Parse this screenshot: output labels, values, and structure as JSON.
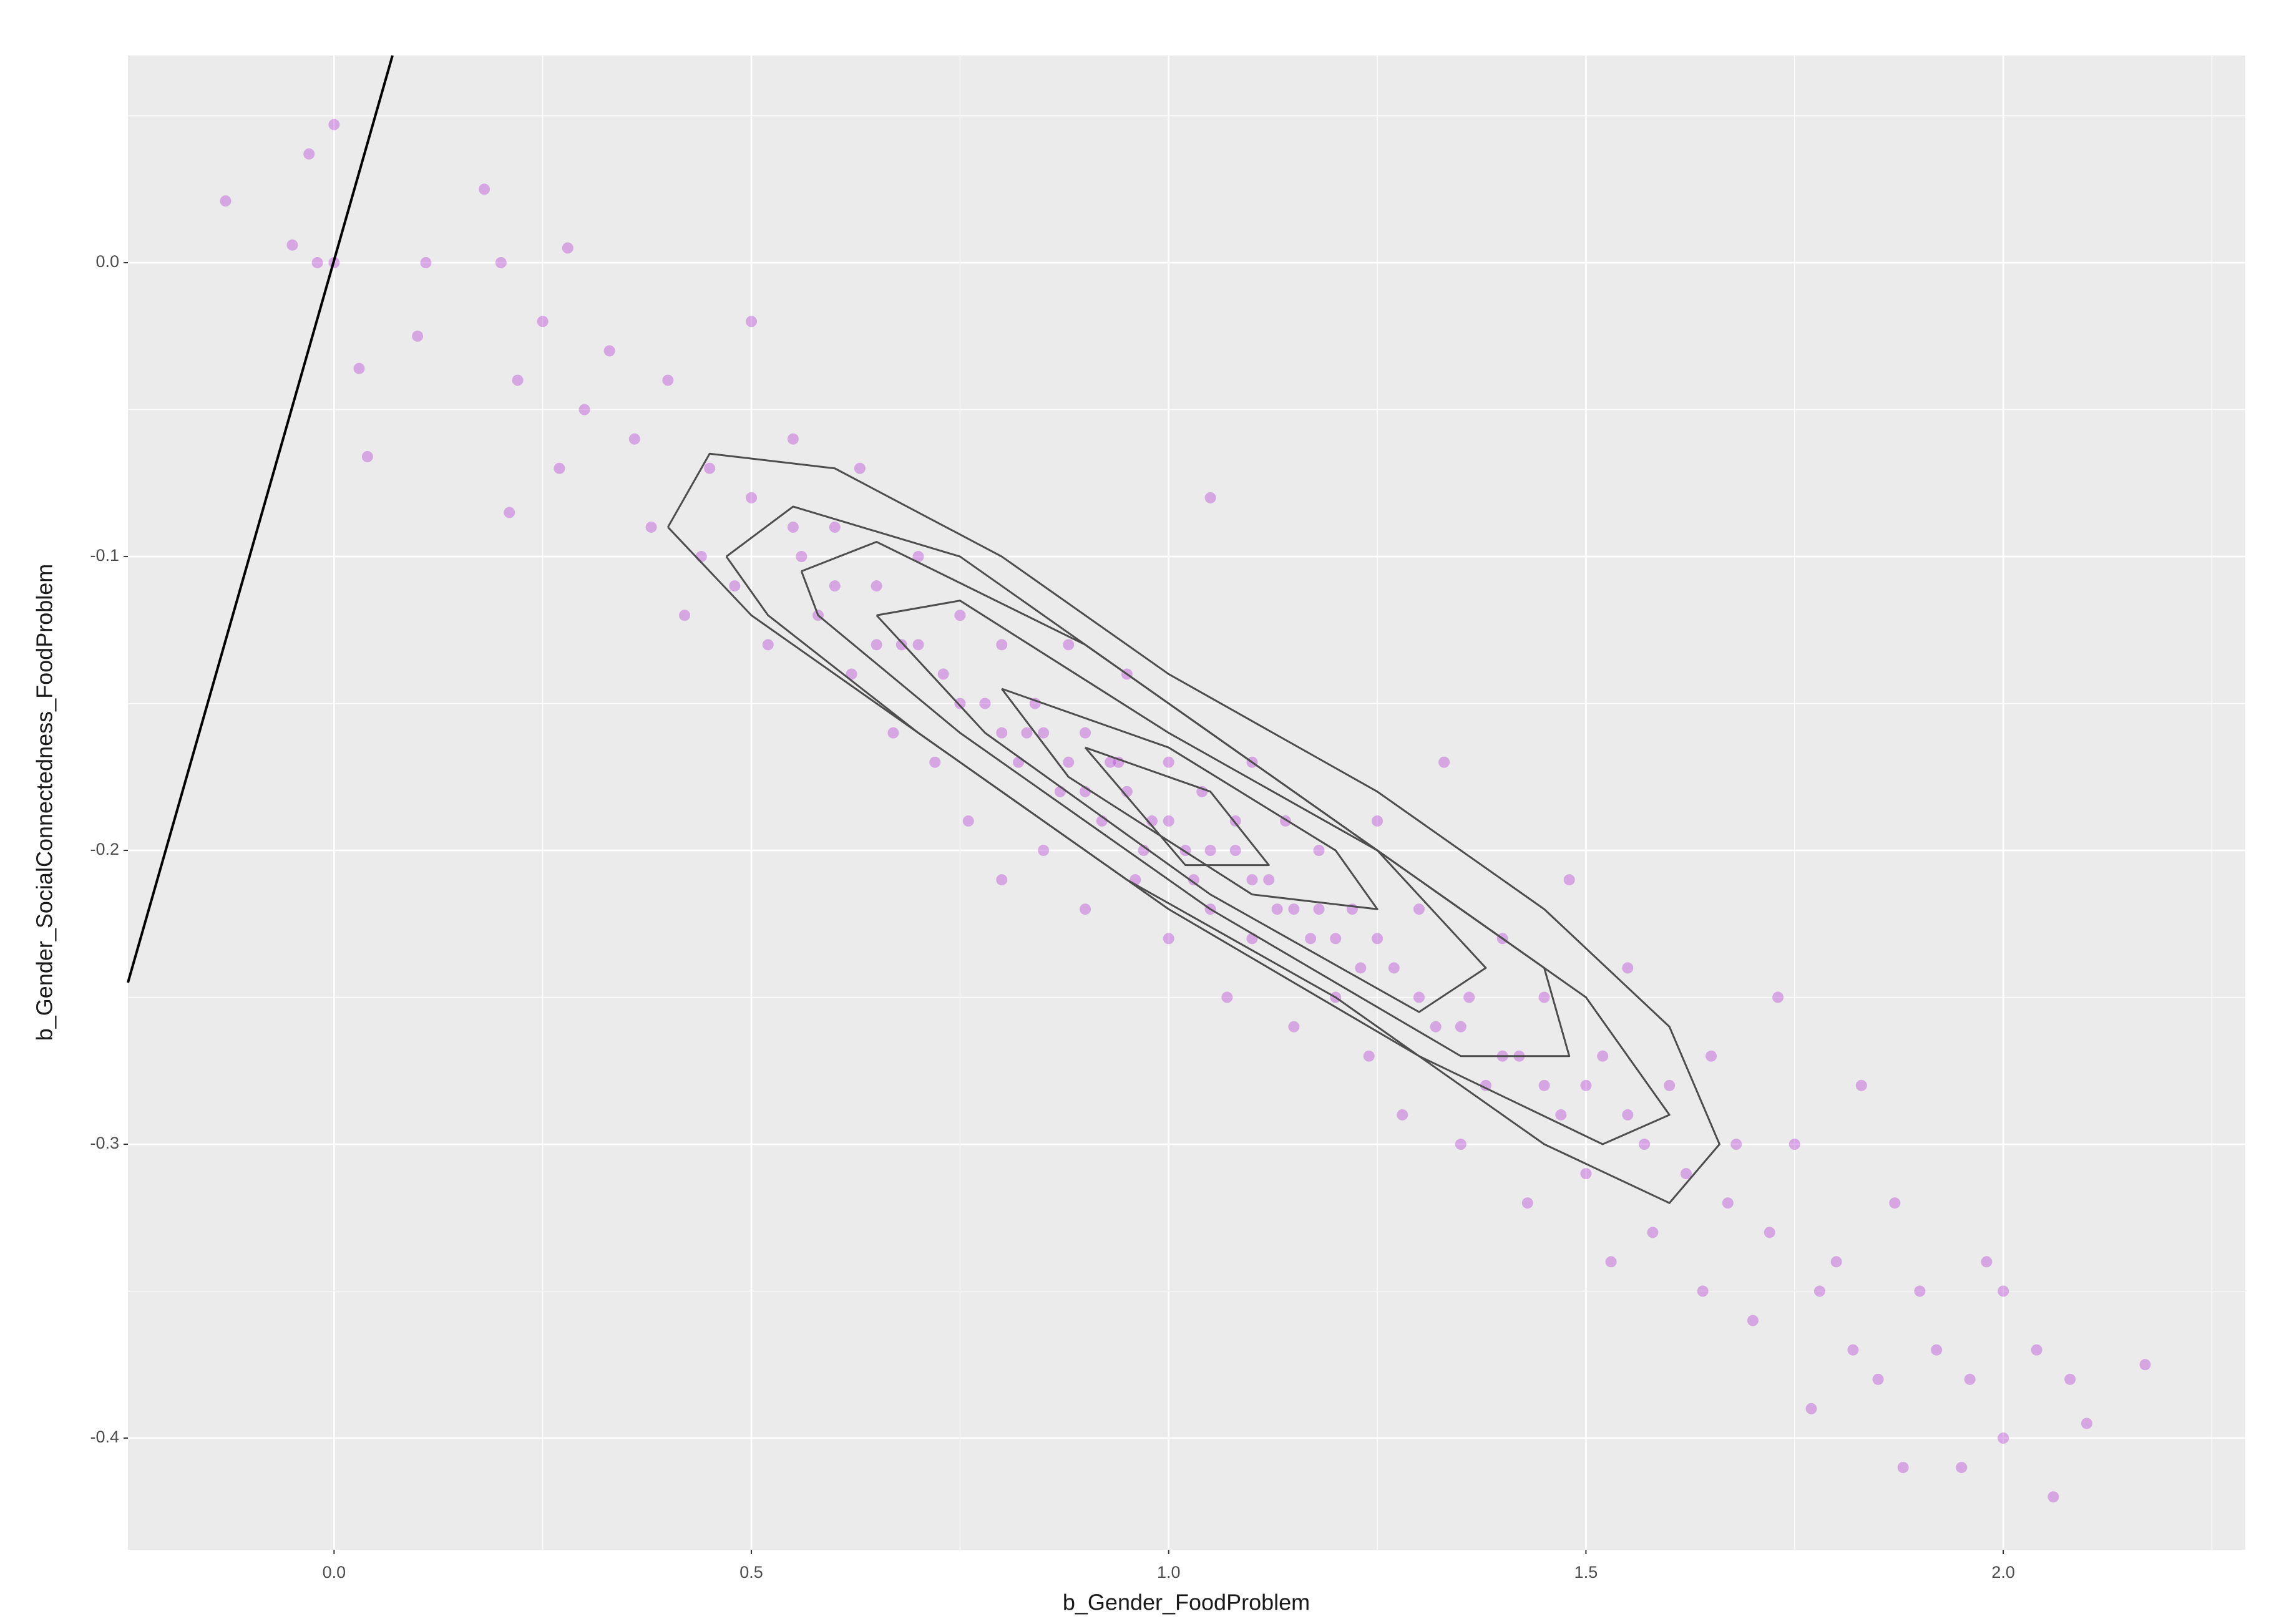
{
  "chart_data": {
    "type": "scatter",
    "x_label": "b_Gender_FoodProblem",
    "y_label": "b_Gender_SocialConnectedness_FoodProblem",
    "xlim": [
      -0.247,
      2.29
    ],
    "ylim": [
      -0.438,
      0.0705
    ],
    "xticks": [
      {
        "value": 0,
        "label": "0.0"
      },
      0.5,
      {
        "value": 1,
        "label": "1.0"
      },
      1.5,
      {
        "value": 2,
        "label": "2.0"
      }
    ],
    "yticks": [
      {
        "value": -0.4,
        "label": "-0.4"
      },
      {
        "value": -0.3,
        "label": "-0.3"
      },
      {
        "value": -0.2,
        "label": "-0.2"
      },
      {
        "value": -0.1,
        "label": "-0.1"
      },
      {
        "value": 0,
        "label": "0.0"
      }
    ],
    "grid": true,
    "color": "#b026d0",
    "x": [
      -0.13,
      -0.05,
      -0.03,
      0.0,
      -0.02,
      0.0,
      0.04,
      0.03,
      0.1,
      0.11,
      0.18,
      0.2,
      0.22,
      0.25,
      0.28,
      0.21,
      0.27,
      0.3,
      0.33,
      0.36,
      0.38,
      0.4,
      0.42,
      0.45,
      0.44,
      0.48,
      0.5,
      0.5,
      0.52,
      0.55,
      0.56,
      0.58,
      0.6,
      0.62,
      0.63,
      0.65,
      0.67,
      0.68,
      0.7,
      0.72,
      0.73,
      0.75,
      0.76,
      0.78,
      0.8,
      0.8,
      0.82,
      0.84,
      0.85,
      0.87,
      0.88,
      0.9,
      0.9,
      0.92,
      0.94,
      0.95,
      0.96,
      0.98,
      1.0,
      1.0,
      1.02,
      1.04,
      1.05,
      1.05,
      1.07,
      1.08,
      1.1,
      1.1,
      1.12,
      1.14,
      1.15,
      1.17,
      1.18,
      1.2,
      1.22,
      1.24,
      1.25,
      1.27,
      1.28,
      1.3,
      1.32,
      1.33,
      1.35,
      1.36,
      1.38,
      1.4,
      1.42,
      1.43,
      1.45,
      1.47,
      1.48,
      1.5,
      1.52,
      1.53,
      1.55,
      1.57,
      1.58,
      1.6,
      1.62,
      1.64,
      1.65,
      1.67,
      1.68,
      1.7,
      1.72,
      1.73,
      1.75,
      1.77,
      1.78,
      1.8,
      1.82,
      1.83,
      1.85,
      1.87,
      1.88,
      1.9,
      1.92,
      1.95,
      1.96,
      1.98,
      2.0,
      2.0,
      2.04,
      2.06,
      2.08,
      2.1,
      2.17,
      0.55,
      0.6,
      0.65,
      0.7,
      0.75,
      0.8,
      0.85,
      0.9,
      0.95,
      1.0,
      1.05,
      1.1,
      1.15,
      1.2,
      1.25,
      1.3,
      1.35,
      1.4,
      1.45,
      1.5,
      1.55,
      0.97,
      1.03,
      1.08,
      0.93,
      1.13,
      1.18,
      0.88,
      0.83,
      1.23
    ],
    "y": [
      0.021,
      0.006,
      0.037,
      0.047,
      0.0,
      0.0,
      -0.066,
      -0.036,
      -0.025,
      0.0,
      0.025,
      0.0,
      -0.04,
      -0.02,
      0.005,
      -0.085,
      -0.07,
      -0.05,
      -0.03,
      -0.06,
      -0.09,
      -0.04,
      -0.12,
      -0.07,
      -0.1,
      -0.11,
      -0.02,
      -0.08,
      -0.13,
      -0.06,
      -0.1,
      -0.12,
      -0.09,
      -0.14,
      -0.07,
      -0.11,
      -0.16,
      -0.13,
      -0.1,
      -0.17,
      -0.14,
      -0.12,
      -0.19,
      -0.15,
      -0.13,
      -0.21,
      -0.17,
      -0.15,
      -0.2,
      -0.18,
      -0.13,
      -0.16,
      -0.22,
      -0.19,
      -0.17,
      -0.14,
      -0.21,
      -0.19,
      -0.17,
      -0.23,
      -0.2,
      -0.18,
      -0.08,
      -0.22,
      -0.25,
      -0.2,
      -0.17,
      -0.23,
      -0.21,
      -0.19,
      -0.26,
      -0.23,
      -0.2,
      -0.25,
      -0.22,
      -0.27,
      -0.19,
      -0.24,
      -0.29,
      -0.22,
      -0.26,
      -0.17,
      -0.3,
      -0.25,
      -0.28,
      -0.23,
      -0.27,
      -0.32,
      -0.25,
      -0.29,
      -0.21,
      -0.31,
      -0.27,
      -0.34,
      -0.24,
      -0.3,
      -0.33,
      -0.28,
      -0.31,
      -0.35,
      -0.27,
      -0.32,
      -0.3,
      -0.36,
      -0.33,
      -0.25,
      -0.3,
      -0.39,
      -0.35,
      -0.34,
      -0.37,
      -0.28,
      -0.38,
      -0.32,
      -0.41,
      -0.35,
      -0.37,
      -0.41,
      -0.38,
      -0.34,
      -0.4,
      -0.35,
      -0.37,
      -0.42,
      -0.38,
      -0.395,
      -0.375,
      -0.09,
      -0.11,
      -0.13,
      -0.13,
      -0.15,
      -0.16,
      -0.16,
      -0.18,
      -0.18,
      -0.19,
      -0.2,
      -0.21,
      -0.22,
      -0.23,
      -0.23,
      -0.25,
      -0.26,
      -0.27,
      -0.28,
      -0.28,
      -0.29,
      -0.2,
      -0.21,
      -0.19,
      -0.17,
      -0.22,
      -0.22,
      -0.17,
      -0.16,
      -0.24
    ],
    "contours": [
      {
        "x": [
          0.4,
          0.45,
          0.6,
          0.8,
          1.0,
          1.25,
          1.45,
          1.6,
          1.66,
          1.6,
          1.45,
          1.2,
          0.95,
          0.7,
          0.5,
          0.4
        ],
        "y": [
          -0.09,
          -0.065,
          -0.07,
          -0.1,
          -0.14,
          -0.18,
          -0.22,
          -0.26,
          -0.3,
          -0.32,
          -0.3,
          -0.25,
          -0.21,
          -0.16,
          -0.12,
          -0.09
        ]
      },
      {
        "x": [
          0.47,
          0.55,
          0.75,
          1.0,
          1.25,
          1.5,
          1.6,
          1.52,
          1.3,
          1.0,
          0.7,
          0.52,
          0.47
        ],
        "y": [
          -0.1,
          -0.083,
          -0.1,
          -0.15,
          -0.2,
          -0.25,
          -0.29,
          -0.3,
          -0.27,
          -0.22,
          -0.16,
          -0.12,
          -0.1
        ]
      },
      {
        "x": [
          0.56,
          0.65,
          0.9,
          1.2,
          1.45,
          1.48,
          1.35,
          1.05,
          0.75,
          0.58,
          0.56
        ],
        "y": [
          -0.105,
          -0.095,
          -0.13,
          -0.19,
          -0.24,
          -0.27,
          -0.27,
          -0.22,
          -0.16,
          -0.12,
          -0.105
        ]
      },
      {
        "x": [
          0.65,
          0.75,
          1.0,
          1.25,
          1.38,
          1.3,
          1.05,
          0.78,
          0.65
        ],
        "y": [
          -0.12,
          -0.115,
          -0.16,
          -0.2,
          -0.24,
          -0.255,
          -0.215,
          -0.16,
          -0.12
        ]
      },
      {
        "x": [
          0.8,
          1.0,
          1.2,
          1.25,
          1.1,
          0.88,
          0.8
        ],
        "y": [
          -0.145,
          -0.165,
          -0.2,
          -0.22,
          -0.215,
          -0.175,
          -0.145
        ]
      },
      {
        "x": [
          0.9,
          1.05,
          1.12,
          1.02,
          0.9
        ],
        "y": [
          -0.165,
          -0.18,
          -0.205,
          -0.205,
          -0.165
        ]
      }
    ],
    "line": {
      "x": [
        -0.247,
        0.07
      ],
      "y": [
        -0.245,
        0.0705
      ]
    }
  }
}
